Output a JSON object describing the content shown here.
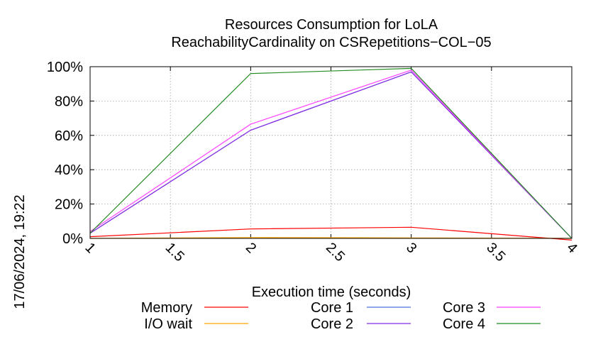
{
  "chart_data": {
    "type": "line",
    "title": [
      "Resources Consumption for LoLA",
      "ReachabilityCardinality on CSRepetitions−COL−05"
    ],
    "xlabel": "Execution time (seconds)",
    "ylabel": "",
    "side_label": "17/06/2024, 19:22",
    "xlim": [
      1,
      4
    ],
    "ylim": [
      0,
      100
    ],
    "x_ticks": [
      1,
      1.5,
      2,
      2.5,
      3,
      3.5,
      4
    ],
    "x_tick_labels": [
      "1",
      "1.5",
      "2",
      "2.5",
      "3",
      "3.5",
      "4"
    ],
    "y_ticks": [
      0,
      20,
      40,
      60,
      80,
      100
    ],
    "y_tick_labels": [
      "0%",
      "20%",
      "40%",
      "60%",
      "80%",
      "100%"
    ],
    "grid": true,
    "legend_position": "bottom",
    "series": [
      {
        "name": "Memory",
        "color": "#ff0000",
        "x": [
          1,
          2,
          3,
          4
        ],
        "y": [
          1,
          5.5,
          6.5,
          -1
        ]
      },
      {
        "name": "I/O wait",
        "color": "#ffa500",
        "x": [
          1,
          2,
          3,
          4
        ],
        "y": [
          0,
          0.5,
          0.3,
          0
        ]
      },
      {
        "name": "Core 1",
        "color": "#4a6fdc",
        "x": [
          1,
          2,
          3,
          4
        ],
        "y": [
          3,
          63,
          97,
          0
        ]
      },
      {
        "name": "Core 2",
        "color": "#8a2be2",
        "x": [
          1,
          2,
          3,
          4
        ],
        "y": [
          3,
          63,
          97,
          0
        ]
      },
      {
        "name": "Core 3",
        "color": "#ff40ff",
        "x": [
          1,
          2,
          3,
          4
        ],
        "y": [
          4,
          66.5,
          98,
          0
        ]
      },
      {
        "name": "Core 4",
        "color": "#228b22",
        "x": [
          1,
          2,
          3,
          4
        ],
        "y": [
          3,
          96,
          99,
          0
        ]
      }
    ]
  }
}
